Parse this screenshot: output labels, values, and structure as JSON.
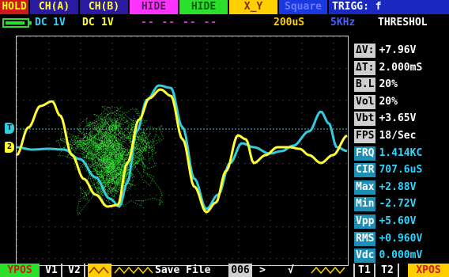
{
  "top_bar": {
    "hold": "HOLD",
    "ch_a": "CH(A)",
    "ch_b": "CH(B)",
    "hide1": "HIDE",
    "hide2": "HIDE",
    "xy": "X_Y",
    "wave": "Square",
    "trigger": "TRIGG: f"
  },
  "status_bar": {
    "ch_a_coupling": "DC",
    "ch_a_scale": "1V",
    "ch_b_coupling": "DC",
    "ch_b_scale": "1V",
    "dashes": "-- -- -- --",
    "timebase": "200uS",
    "frequency": "5KHz",
    "trigger_mode": "THRESHOL"
  },
  "markers": {
    "trigger": "T",
    "channel2": "2"
  },
  "measurements": [
    {
      "label": "ΔV:",
      "value": "+7.96V",
      "cyan": false
    },
    {
      "label": "ΔT:",
      "value": "2.000mS",
      "cyan": false
    },
    {
      "label": "B.L",
      "value": "20%",
      "cyan": false
    },
    {
      "label": "Vol",
      "value": "20%",
      "cyan": false
    },
    {
      "label": "Vbt",
      "value": "+3.65V",
      "cyan": false
    },
    {
      "label": "FPS",
      "value": "18/Sec",
      "cyan": false
    },
    {
      "label": "FRQ",
      "value": "1.414KC",
      "cyan": true
    },
    {
      "label": "CIR",
      "value": "707.6uS",
      "cyan": true
    },
    {
      "label": "Max",
      "value": "+2.88V",
      "cyan": true
    },
    {
      "label": "Min",
      "value": "-2.72V",
      "cyan": true
    },
    {
      "label": "Vpp",
      "value": "+5.60V",
      "cyan": true
    },
    {
      "label": "RMS",
      "value": "+0.960V",
      "cyan": true
    },
    {
      "label": "Vdc",
      "value": "0.000mV",
      "cyan": true
    }
  ],
  "bottom_bar": {
    "ypos": "YPOS",
    "v1": "V1",
    "v2": "V2",
    "save": "Save File",
    "file_no": "006",
    "arrow": ">",
    "check": "√",
    "t1": "T1",
    "t2": "T2",
    "xpos": "XPOS"
  },
  "colors": {
    "channel_a": "#ffff33",
    "channel_b": "#33ccdd",
    "xy_trace": "#33dd33",
    "grid": "#6a6a6a",
    "trigger_level": "#33ccdd"
  }
}
